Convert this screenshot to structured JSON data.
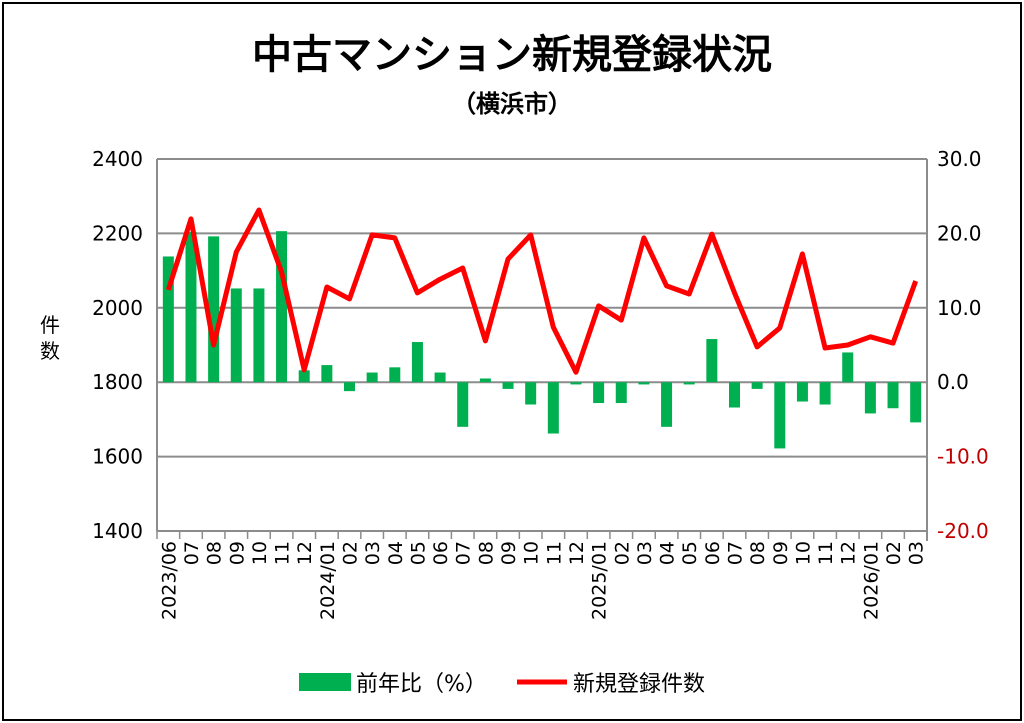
{
  "chart_data": {
    "type": "bar+line",
    "title": "中古マンション新規登録状況",
    "subtitle": "（横浜市）",
    "ylabel_left": "件数",
    "ylim_left": [
      1400,
      2400
    ],
    "yticks_left": [
      "1400",
      "1600",
      "1800",
      "2000",
      "2200",
      "2400"
    ],
    "ylim_right": [
      -20,
      30
    ],
    "yticks_right": [
      "-20.0",
      "-10.0",
      "0.0",
      "10.0",
      "20.0",
      "30.0"
    ],
    "categories": [
      "2023/06",
      "07",
      "08",
      "09",
      "10",
      "11",
      "12",
      "2024/01",
      "02",
      "03",
      "04",
      "05",
      "06",
      "07",
      "08",
      "09",
      "10",
      "11",
      "12",
      "2025/01",
      "02",
      "03",
      "04",
      "05",
      "06",
      "07",
      "08",
      "09",
      "10",
      "11",
      "12",
      "2026/01",
      "02",
      "03"
    ],
    "grid": true,
    "legend_position": "bottom",
    "series": [
      {
        "name": "前年比（%）",
        "type": "bar",
        "axis": "right",
        "color": "#00B050",
        "values": [
          16.9,
          20.2,
          19.6,
          12.6,
          12.6,
          20.3,
          1.6,
          2.3,
          -1.2,
          1.3,
          2.0,
          5.4,
          1.3,
          -6.0,
          0.5,
          -0.9,
          -3.0,
          -6.9,
          -0.3,
          -2.8,
          -2.8,
          -0.3,
          -6.0,
          -0.3,
          5.8,
          -3.4,
          -0.9,
          -8.9,
          -2.6,
          -3.0,
          4.0,
          -4.2,
          -3.5,
          -5.4
        ]
      },
      {
        "name": "新規登録件数",
        "type": "line",
        "axis": "left",
        "color": "#FF0000",
        "values": [
          2048,
          2239,
          1900,
          2150,
          2263,
          2096,
          1833,
          2056,
          2024,
          2196,
          2188,
          2040,
          2077,
          2107,
          1911,
          2131,
          2196,
          1948,
          1827,
          2005,
          1967,
          2188,
          2059,
          2037,
          2198,
          2040,
          1895,
          1946,
          2145,
          1892,
          1900,
          1922,
          1905,
          2072
        ]
      }
    ],
    "right_tick_color": "#C00000"
  }
}
